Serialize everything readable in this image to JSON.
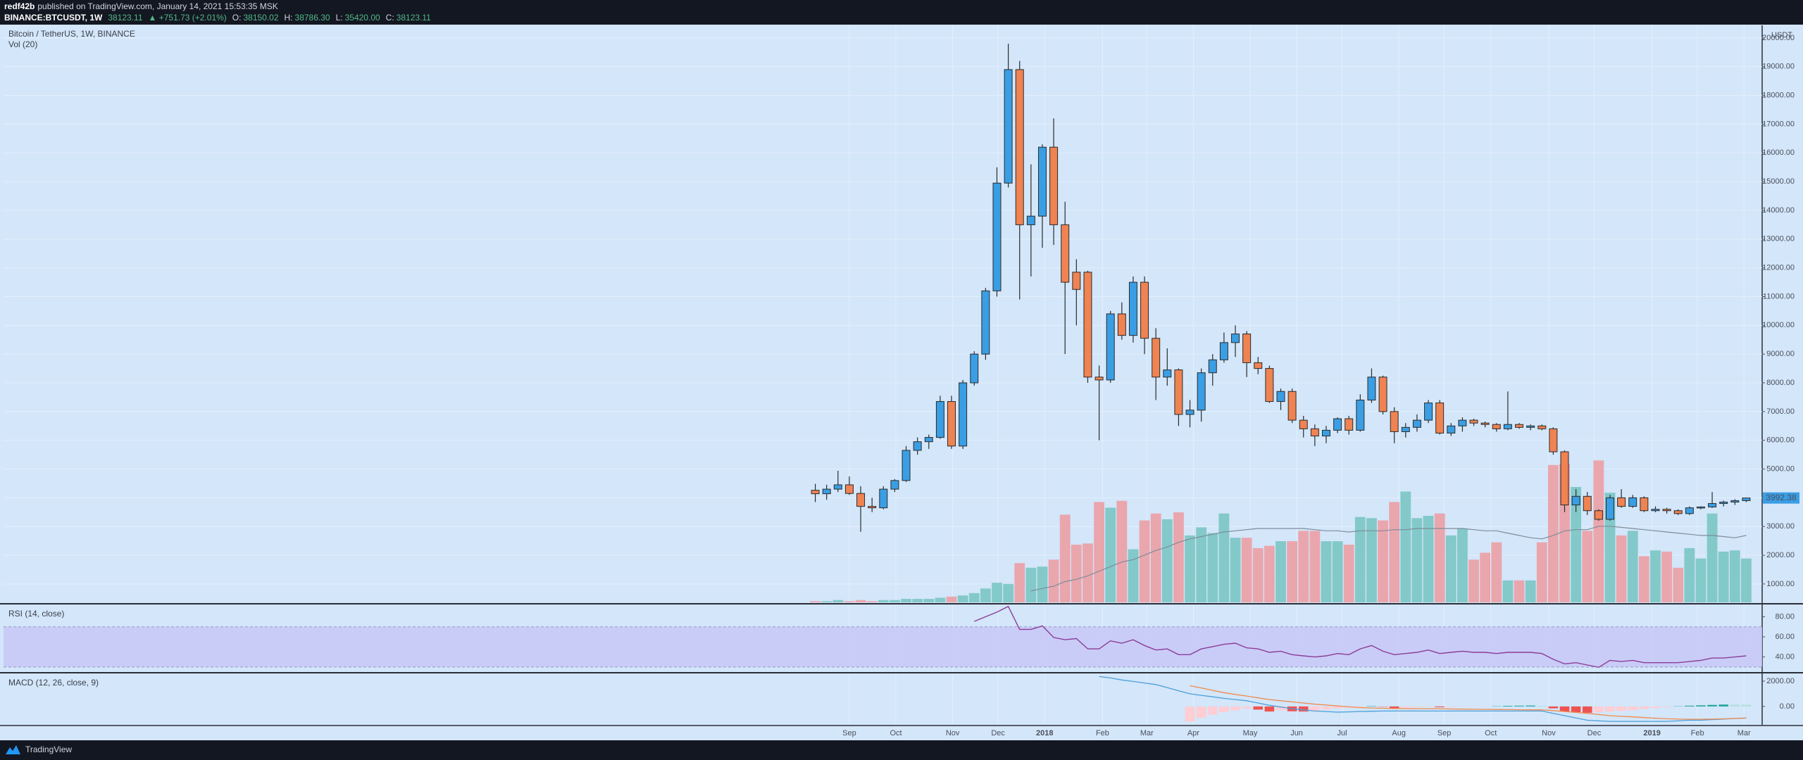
{
  "header": {
    "author": "redf42b",
    "published": "published on TradingView.com, January 14, 2021 15:53:35 MSK",
    "symbol": "BINANCE:BTCUSDT, 1W",
    "last": "38123.11",
    "change": "▲ +751.73 (+2.01%)",
    "o_label": "O:",
    "o": "38150.02",
    "h_label": "H:",
    "h": "38786.30",
    "l_label": "L:",
    "l": "35420.00",
    "c_label": "C:",
    "c": "38123.11"
  },
  "footer": {
    "brand": "TradingView"
  },
  "chart_data": [
    {
      "type": "candlestick",
      "title": "Bitcoin / TetherUS, 1W, BINANCE",
      "volume_title": "Vol (20)",
      "unit": "USDT",
      "xlim": [
        -71.5,
        83.4
      ],
      "xticks": [
        {
          "value": 3.0,
          "label": "Sep"
        },
        {
          "value": 7.1,
          "label": "Oct"
        },
        {
          "value": 12.1,
          "label": "Nov"
        },
        {
          "value": 16.1,
          "label": "Dec"
        },
        {
          "value": 20.2,
          "label": "2018"
        },
        {
          "value": 25.3,
          "label": "Feb"
        },
        {
          "value": 29.2,
          "label": "Mar"
        },
        {
          "value": 33.3,
          "label": "Apr"
        },
        {
          "value": 38.3,
          "label": "May"
        },
        {
          "value": 42.4,
          "label": "Jun"
        },
        {
          "value": 46.4,
          "label": "Jul"
        },
        {
          "value": 51.4,
          "label": "Aug"
        },
        {
          "value": 55.4,
          "label": "Sep"
        },
        {
          "value": 59.5,
          "label": "Oct"
        },
        {
          "value": 64.6,
          "label": "Nov"
        },
        {
          "value": 68.6,
          "label": "Dec"
        },
        {
          "value": 73.7,
          "label": "2019"
        },
        {
          "value": 77.7,
          "label": "Feb"
        },
        {
          "value": 81.8,
          "label": "Mar"
        }
      ],
      "ylim": [
        360,
        20440
      ],
      "yticks": [
        {
          "value": 1000,
          "label": "1000.00"
        },
        {
          "value": 2000,
          "label": "2000.00"
        },
        {
          "value": 3000,
          "label": "3000.00"
        },
        {
          "value": 4000,
          "label": "4000.00"
        },
        {
          "value": 5000,
          "label": "5000.00"
        },
        {
          "value": 6000,
          "label": "6000.00"
        },
        {
          "value": 7000,
          "label": "7000.00"
        },
        {
          "value": 8000,
          "label": "8000.00"
        },
        {
          "value": 9000,
          "label": "9000.00"
        },
        {
          "value": 10000,
          "label": "10000.00"
        },
        {
          "value": 11000,
          "label": "11000.00"
        },
        {
          "value": 12000,
          "label": "12000.00"
        },
        {
          "value": 13000,
          "label": "13000.00"
        },
        {
          "value": 14000,
          "label": "14000.00"
        },
        {
          "value": 15000,
          "label": "15000.00"
        },
        {
          "value": 16000,
          "label": "16000.00"
        },
        {
          "value": 17000,
          "label": "17000.00"
        },
        {
          "value": 18000,
          "label": "18000.00"
        },
        {
          "value": 19000,
          "label": "19000.00"
        },
        {
          "value": 20000,
          "label": "20000.00"
        }
      ],
      "grid": true,
      "up_color": "#3a9ee4",
      "down_color": "#ef8352",
      "vol_up_color": "#7ec7c6",
      "vol_down_color": "#eba2a9",
      "ma_color": "#7f8c99",
      "open": [
        4261,
        4140,
        4300,
        4450,
        4150,
        3700,
        3650,
        4300,
        4600,
        5650,
        5950,
        6100,
        7350,
        5800,
        8000,
        9000,
        11200,
        14950,
        18900,
        13500,
        13800,
        16200,
        13500,
        11850,
        11850,
        8200,
        8100,
        10400,
        9650,
        11500,
        9550,
        8200,
        8450,
        6900,
        7050,
        8350,
        8800,
        9400,
        9700,
        8700,
        8500,
        7350,
        7700,
        6700,
        6400,
        6150,
        6350,
        6750,
        6350,
        7400,
        8200,
        7000,
        6300,
        6450,
        6700,
        7300,
        6250,
        6500,
        6700,
        6600,
        6550,
        6400,
        6550,
        6450,
        6500,
        6400,
        5600,
        3750,
        4050,
        3550,
        3250,
        4000,
        3700,
        4000,
        3550,
        3600,
        3550,
        3450,
        3650,
        3680,
        3800,
        3850,
        3900
      ],
      "high": [
        4485,
        4453,
        4939,
        4740,
        4400,
        4000,
        4400,
        4650,
        5800,
        6100,
        6200,
        7550,
        7550,
        8100,
        9100,
        11300,
        15500,
        19800,
        19200,
        15600,
        16300,
        17200,
        14300,
        12300,
        11900,
        8600,
        10500,
        10800,
        11700,
        11700,
        9900,
        9200,
        8500,
        7400,
        8500,
        9000,
        9750,
        10000,
        9800,
        8900,
        8600,
        7800,
        7800,
        6850,
        6550,
        6500,
        6800,
        6850,
        7600,
        8500,
        8250,
        7150,
        6600,
        6900,
        7400,
        7400,
        6600,
        6800,
        6750,
        6650,
        6600,
        7700,
        6600,
        6550,
        6550,
        6450,
        5650,
        4300,
        4200,
        3600,
        4100,
        4300,
        4100,
        4050,
        3700,
        3650,
        3600,
        3700,
        3700,
        4200,
        3900,
        3950,
        4000
      ],
      "low": [
        3850,
        3930,
        4200,
        4100,
        2817,
        3500,
        3600,
        4200,
        4550,
        5500,
        5700,
        6050,
        5700,
        5700,
        7900,
        8800,
        11000,
        14800,
        10900,
        11700,
        12700,
        12800,
        9000,
        10000,
        8000,
        6000,
        8000,
        9500,
        9400,
        9000,
        7400,
        7900,
        6500,
        6450,
        6650,
        7900,
        8700,
        8900,
        8200,
        8300,
        7300,
        7050,
        6600,
        6100,
        5800,
        5900,
        6250,
        6200,
        6300,
        7300,
        6900,
        5900,
        6100,
        6300,
        6600,
        6200,
        6150,
        6300,
        6500,
        6450,
        6300,
        6350,
        6400,
        6350,
        6350,
        5500,
        3500,
        3500,
        3400,
        3200,
        3200,
        3650,
        3650,
        3500,
        3500,
        3450,
        3400,
        3400,
        3600,
        3650,
        3700,
        3750,
        3850
      ],
      "close": [
        4140,
        4300,
        4450,
        4150,
        3700,
        3650,
        4300,
        4600,
        5650,
        5950,
        6100,
        7350,
        5800,
        8000,
        9000,
        11200,
        14950,
        18900,
        13500,
        13800,
        16200,
        13500,
        11500,
        11250,
        8200,
        8100,
        10400,
        9650,
        11500,
        9550,
        8200,
        8450,
        6900,
        7050,
        8350,
        8800,
        9400,
        9700,
        8700,
        8500,
        7350,
        7700,
        6700,
        6400,
        6150,
        6350,
        6750,
        6350,
        7400,
        8200,
        7000,
        6300,
        6450,
        6700,
        7300,
        6250,
        6500,
        6700,
        6600,
        6550,
        6400,
        6550,
        6450,
        6500,
        6400,
        5600,
        3750,
        4050,
        3550,
        3250,
        4000,
        3700,
        4000,
        3550,
        3600,
        3550,
        3450,
        3650,
        3680,
        3800,
        3850,
        3900,
        3992.38
      ],
      "volume_lim": [
        0,
        500
      ],
      "volume": [
        1,
        1,
        2,
        1,
        2,
        1,
        2,
        2,
        3,
        3,
        3,
        4,
        5,
        6,
        8,
        12,
        17,
        16,
        34,
        30,
        31,
        37,
        76,
        50,
        51,
        87,
        82,
        88,
        46,
        71,
        77,
        72,
        78,
        58,
        65,
        60,
        77,
        56,
        56,
        47,
        49,
        53,
        53,
        62,
        62,
        53,
        53,
        50,
        74,
        73,
        71,
        87,
        96,
        73,
        75,
        77,
        58,
        64,
        37,
        43,
        52,
        19,
        19,
        19,
        52,
        119,
        120,
        100,
        62,
        123,
        95,
        58,
        62,
        40,
        45,
        44,
        30,
        47,
        38,
        77,
        44,
        45,
        38
      ],
      "volume_ma": [
        null,
        null,
        null,
        null,
        null,
        null,
        null,
        null,
        null,
        null,
        null,
        null,
        null,
        null,
        null,
        null,
        null,
        null,
        null,
        10,
        12,
        14,
        18,
        20,
        23,
        27,
        31,
        35,
        37,
        41,
        45,
        48,
        52,
        55,
        57,
        59,
        61,
        62,
        63,
        64,
        64,
        64,
        64,
        64,
        63,
        62,
        62,
        61,
        62,
        62,
        62,
        63,
        63,
        64,
        64,
        64,
        64,
        64,
        63,
        62,
        62,
        60,
        58,
        56,
        55,
        58,
        62,
        63,
        63,
        66,
        66,
        65,
        64,
        63,
        62,
        61,
        60,
        59,
        58,
        58,
        57,
        56,
        58
      ]
    },
    {
      "type": "line",
      "title": "RSI (14, close)",
      "ylim": [
        25,
        91.5
      ],
      "yticks": [
        {
          "value": 40,
          "label": "40.00"
        },
        {
          "value": 60,
          "label": "60.00"
        },
        {
          "value": 80,
          "label": "80.00"
        }
      ],
      "band": [
        30,
        70
      ],
      "band_color": "#c7c6f6",
      "color": "#8b3d97",
      "values": [
        null,
        null,
        null,
        null,
        null,
        null,
        null,
        null,
        null,
        null,
        null,
        null,
        null,
        null,
        75.4,
        80,
        84.6,
        90.3,
        67.4,
        67.4,
        70.9,
        59.4,
        57.1,
        58.3,
        48,
        48,
        56,
        53.7,
        57.1,
        51.4,
        46.9,
        48,
        42.3,
        42.3,
        48,
        50.3,
        52.6,
        53.7,
        49.1,
        48,
        44.6,
        45.7,
        42.3,
        41.1,
        40,
        41.1,
        43.4,
        42.3,
        48,
        51.4,
        45.7,
        42.3,
        43.4,
        44.6,
        46.9,
        43.4,
        44.6,
        45.7,
        44.6,
        44.6,
        43.4,
        44.6,
        44.6,
        44.6,
        43.4,
        37.7,
        33.1,
        34.3,
        32,
        29.7,
        36.6,
        35.4,
        36.6,
        34.3,
        34.3,
        34.3,
        34.3,
        35.4,
        36.6,
        38.9,
        38.9,
        40,
        41.1
      ]
    },
    {
      "type": "macd",
      "title": "MACD (12, 26, close, 9)",
      "ylim": [
        -1450,
        2550
      ],
      "yticks": [
        {
          "value": 0,
          "label": "0.00"
        },
        {
          "value": 2000,
          "label": "2000.00"
        }
      ],
      "hist_colors": {
        "pos_rising": "#26a69a",
        "pos_falling": "#b2dfdb",
        "neg_falling": "#ef5350",
        "neg_rising": "#ffcdd2"
      },
      "macd_color": "#4b9fd8",
      "signal_color": "#f08a4b",
      "histogram": [
        null,
        null,
        null,
        null,
        null,
        null,
        null,
        null,
        null,
        null,
        null,
        null,
        null,
        null,
        null,
        null,
        null,
        null,
        null,
        null,
        null,
        null,
        null,
        null,
        null,
        null,
        null,
        null,
        null,
        null,
        null,
        null,
        null,
        -1180,
        -900,
        -650,
        -450,
        -300,
        -150,
        -250,
        -400,
        -300,
        -380,
        -400,
        -350,
        -250,
        -150,
        -100,
        -50,
        30,
        -20,
        -150,
        -100,
        -60,
        -20,
        -60,
        -50,
        -30,
        -20,
        -10,
        20,
        50,
        60,
        70,
        50,
        -150,
        -400,
        -450,
        -500,
        -450,
        -400,
        -350,
        -300,
        -200,
        -120,
        -60,
        20,
        60,
        90,
        120,
        150,
        140,
        130
      ],
      "macd": [
        null,
        null,
        null,
        null,
        null,
        null,
        null,
        null,
        null,
        null,
        null,
        null,
        null,
        null,
        null,
        null,
        null,
        null,
        null,
        null,
        null,
        null,
        null,
        null,
        null,
        2360,
        2250,
        2090,
        1970,
        1850,
        1730,
        1490,
        1240,
        1000,
        880,
        760,
        640,
        545,
        450,
        270,
        90,
        -45,
        -180,
        -270,
        -360,
        -400,
        -450,
        -430,
        -400,
        -380,
        -360,
        -360,
        -360,
        -360,
        -360,
        -360,
        -360,
        -360,
        -360,
        -360,
        -360,
        -360,
        -360,
        -360,
        -360,
        -545,
        -730,
        -910,
        -1090,
        -1140,
        -1180,
        -1180,
        -1180,
        -1180,
        -1180,
        -1180,
        -1140,
        -1090,
        -1090,
        -1040,
        -1000,
        -950,
        -910
      ],
      "signal": [
        null,
        null,
        null,
        null,
        null,
        null,
        null,
        null,
        null,
        null,
        null,
        null,
        null,
        null,
        null,
        null,
        null,
        null,
        null,
        null,
        null,
        null,
        null,
        null,
        null,
        null,
        null,
        null,
        null,
        null,
        null,
        null,
        null,
        1640,
        1460,
        1270,
        1090,
        950,
        820,
        680,
        545,
        450,
        360,
        270,
        180,
        110,
        40,
        -30,
        -90,
        -120,
        -140,
        -160,
        -170,
        -180,
        -180,
        -180,
        -200,
        -210,
        -220,
        -230,
        -240,
        -250,
        -260,
        -265,
        -270,
        -330,
        -400,
        -470,
        -545,
        -640,
        -730,
        -780,
        -820,
        -880,
        -930,
        -970,
        -1000,
        -1010,
        -1010,
        -1000,
        -980,
        -950,
        -910
      ]
    }
  ]
}
